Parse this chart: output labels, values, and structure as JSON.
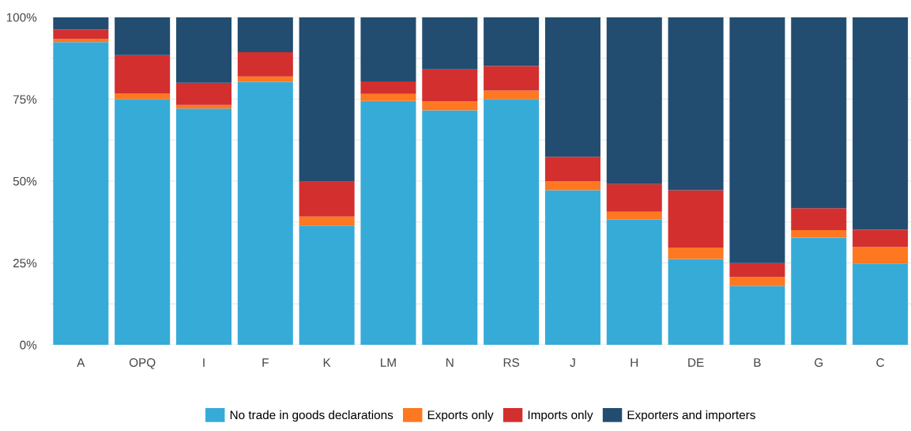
{
  "chart_data": {
    "type": "bar",
    "stacked": true,
    "categories": [
      "A",
      "OPQ",
      "I",
      "F",
      "K",
      "LM",
      "N",
      "RS",
      "J",
      "H",
      "DE",
      "B",
      "G",
      "C"
    ],
    "series": [
      {
        "name": "No trade in goods declarations",
        "color": "#36abd8",
        "values": [
          92.4,
          75.0,
          72.1,
          80.3,
          36.4,
          74.4,
          71.6,
          75.0,
          47.2,
          38.2,
          26.2,
          17.9,
          32.7,
          24.8
        ]
      },
      {
        "name": "Exports only",
        "color": "#fd7820",
        "values": [
          1.0,
          1.8,
          1.1,
          1.6,
          2.8,
          2.2,
          2.7,
          2.6,
          2.8,
          2.4,
          3.5,
          2.8,
          2.3,
          5.1
        ]
      },
      {
        "name": "Imports only",
        "color": "#d32f2f",
        "values": [
          2.8,
          11.6,
          6.8,
          7.4,
          10.6,
          3.8,
          9.8,
          7.5,
          7.4,
          8.5,
          17.5,
          4.2,
          6.7,
          5.2
        ]
      },
      {
        "name": "Exporters and importers",
        "color": "#224d70",
        "values": [
          3.8,
          11.6,
          20.0,
          10.7,
          50.2,
          19.6,
          15.9,
          14.9,
          42.6,
          50.9,
          52.8,
          75.1,
          58.3,
          64.9
        ]
      }
    ],
    "ylim": [
      0,
      100
    ],
    "yticks": [
      {
        "value": 0,
        "label": "0%"
      },
      {
        "value": 12.5,
        "label": null
      },
      {
        "value": 25,
        "label": "25%"
      },
      {
        "value": 37.5,
        "label": null
      },
      {
        "value": 50,
        "label": "50%"
      },
      {
        "value": 62.5,
        "label": null
      },
      {
        "value": 75,
        "label": "75%"
      },
      {
        "value": 87.5,
        "label": null
      },
      {
        "value": 100,
        "label": "100%"
      }
    ],
    "grid": "y",
    "legend": "bottom"
  }
}
